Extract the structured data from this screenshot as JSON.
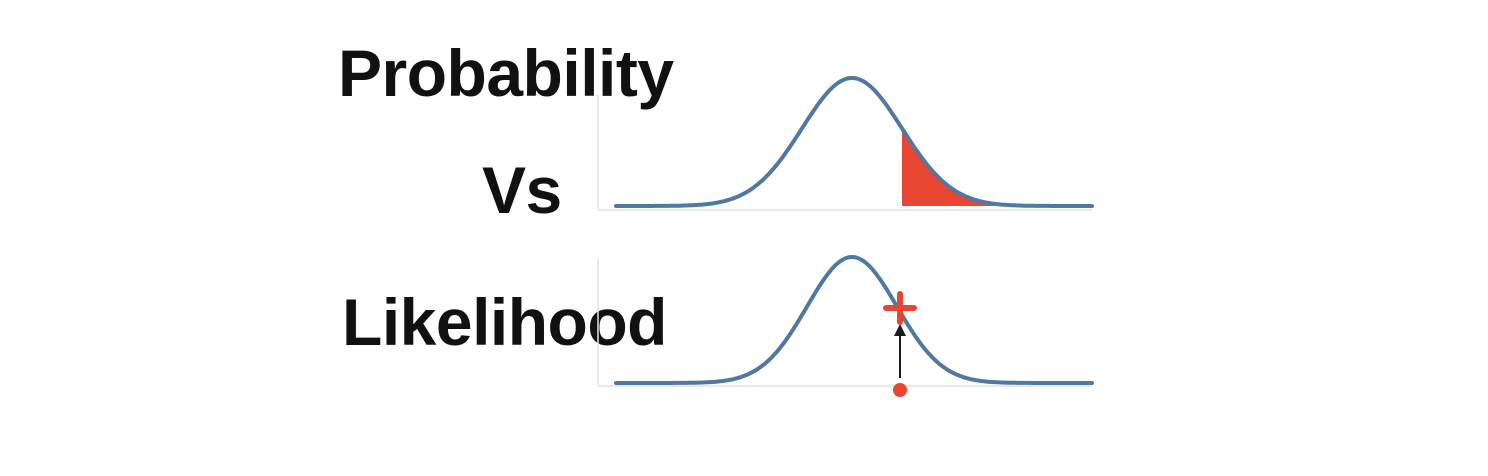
{
  "title": {
    "line1": "Probability",
    "line2": "Vs",
    "line3": "Likelihood"
  },
  "colors": {
    "curve": "#4f79a1",
    "highlight": "#e84533",
    "axis": "#d8d8d8",
    "arrow": "#1a1a1a",
    "text": "#111111"
  },
  "panels": [
    {
      "name": "probability-panel",
      "curve": "normal-distribution",
      "annotation": "shaded-right-tail-area"
    },
    {
      "name": "likelihood-panel",
      "curve": "normal-distribution",
      "annotation": "point-on-curve-with-arrow"
    }
  ]
}
